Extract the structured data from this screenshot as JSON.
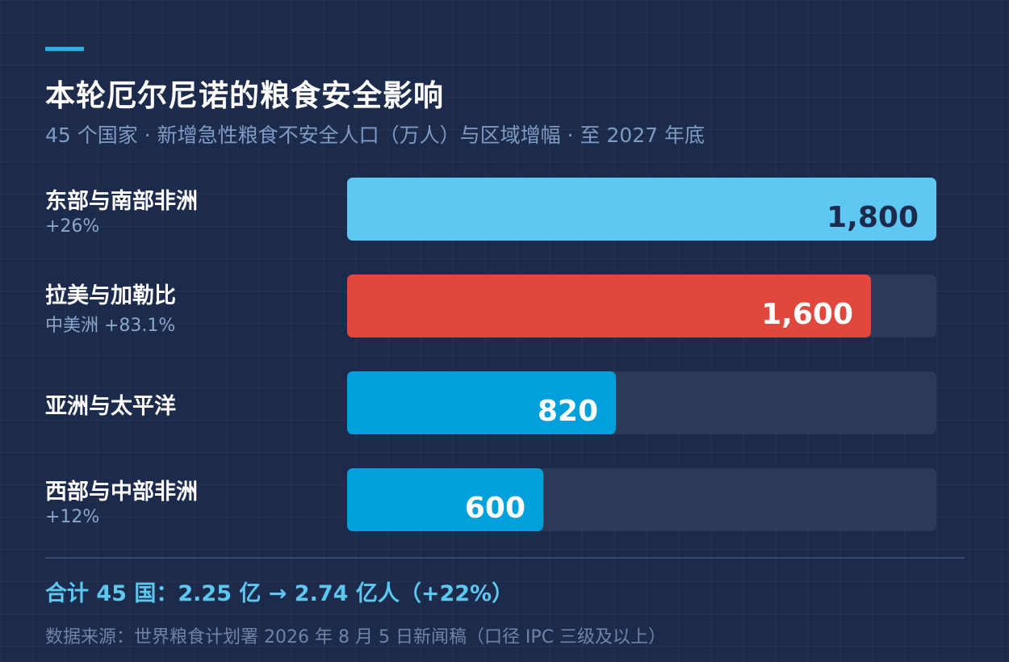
{
  "chart_data": {
    "type": "bar",
    "orientation": "horizontal",
    "title": "本轮厄尔尼诺的粮食安全影响",
    "subtitle": "45 个国家 · 新增急性粮食不安全人口（万人）与区域增幅 · 至 2027 年底",
    "categories": [
      "东部与南部非洲",
      "拉美与加勒比",
      "亚洲与太平洋",
      "西部与中部非洲"
    ],
    "notes": [
      "+26%",
      "中美洲 +83.1%",
      "",
      "+12%"
    ],
    "values": [
      1800,
      1600,
      820,
      600
    ],
    "value_labels": [
      "1,800",
      "1,600",
      "820",
      "600"
    ],
    "xlim": [
      0,
      1800
    ],
    "bar_colors": [
      "#5ec8f2",
      "#e0473d",
      "#00a0dc",
      "#00a0dc"
    ],
    "value_label_colors": [
      "#1c2a4b",
      "#ffffff",
      "#ffffff",
      "#ffffff"
    ],
    "grid": false,
    "legend": "none"
  },
  "summary": "合计 45 国：2.25 亿 → 2.74 亿人（+22%）",
  "source": "数据来源：世界粮食计划署 2026 年 8 月 5 日新闻稿（口径 IPC 三级及以上）",
  "colors": {
    "background": "#1c2a4b",
    "track": "#2c3a58",
    "accent": "#2ab0e8",
    "summary": "#5cc8f0"
  }
}
